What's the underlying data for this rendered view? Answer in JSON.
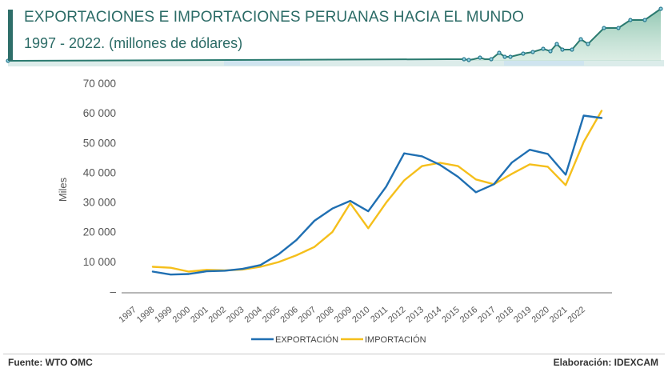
{
  "header": {
    "title": "EXPORTACIONES E IMPORTACIONES PERUANAS HACIA EL MUNDO",
    "subtitle": "1997 - 2022. (millones de dólares)",
    "accent_color": "#2b6b66"
  },
  "footer": {
    "source": "Fuente:  WTO OMC",
    "credit": "Elaboración: IDEXCAM"
  },
  "chart_data": {
    "type": "line",
    "title": "EXPORTACIONES E IMPORTACIONES PERUANAS HACIA EL MUNDO 1997 - 2022. (millones de dólares)",
    "xlabel": "",
    "ylabel": "Miles",
    "ylim": [
      0,
      70000
    ],
    "yticks": [
      0,
      10000,
      20000,
      30000,
      40000,
      50000,
      60000,
      70000
    ],
    "ytick_labels": [
      "–",
      "10 000",
      "20 000",
      "30 000",
      "40 000",
      "50 000",
      "60 000",
      "70 000"
    ],
    "grid": false,
    "legend_position": "bottom-center",
    "categories": [
      "1997",
      "1998",
      "1999",
      "2000",
      "2001",
      "2002",
      "2003",
      "2004",
      "2005",
      "2006",
      "2007",
      "2008",
      "2009",
      "2010",
      "2011",
      "2012",
      "2013",
      "2014",
      "2015",
      "2016",
      "2017",
      "2018",
      "2019",
      "2020",
      "2021",
      "2022"
    ],
    "series": [
      {
        "name": "EXPORTACIÓN",
        "color": "#1f6fb2",
        "values": [
          6600,
          5600,
          5800,
          6700,
          6900,
          7500,
          8800,
          12400,
          17200,
          23700,
          27800,
          30400,
          26900,
          35200,
          46400,
          45400,
          42500,
          38500,
          33300,
          36000,
          43300,
          47600,
          46200,
          39200,
          59100,
          58300
        ]
      },
      {
        "name": "IMPORTACIÓN",
        "color": "#f5bf1b",
        "values": [
          8200,
          7900,
          6600,
          7200,
          7000,
          7300,
          8200,
          9800,
          12100,
          14900,
          19900,
          29600,
          21200,
          29800,
          37300,
          42100,
          43200,
          42100,
          37600,
          36000,
          39500,
          42700,
          41900,
          35700,
          50200,
          60700
        ]
      }
    ]
  }
}
